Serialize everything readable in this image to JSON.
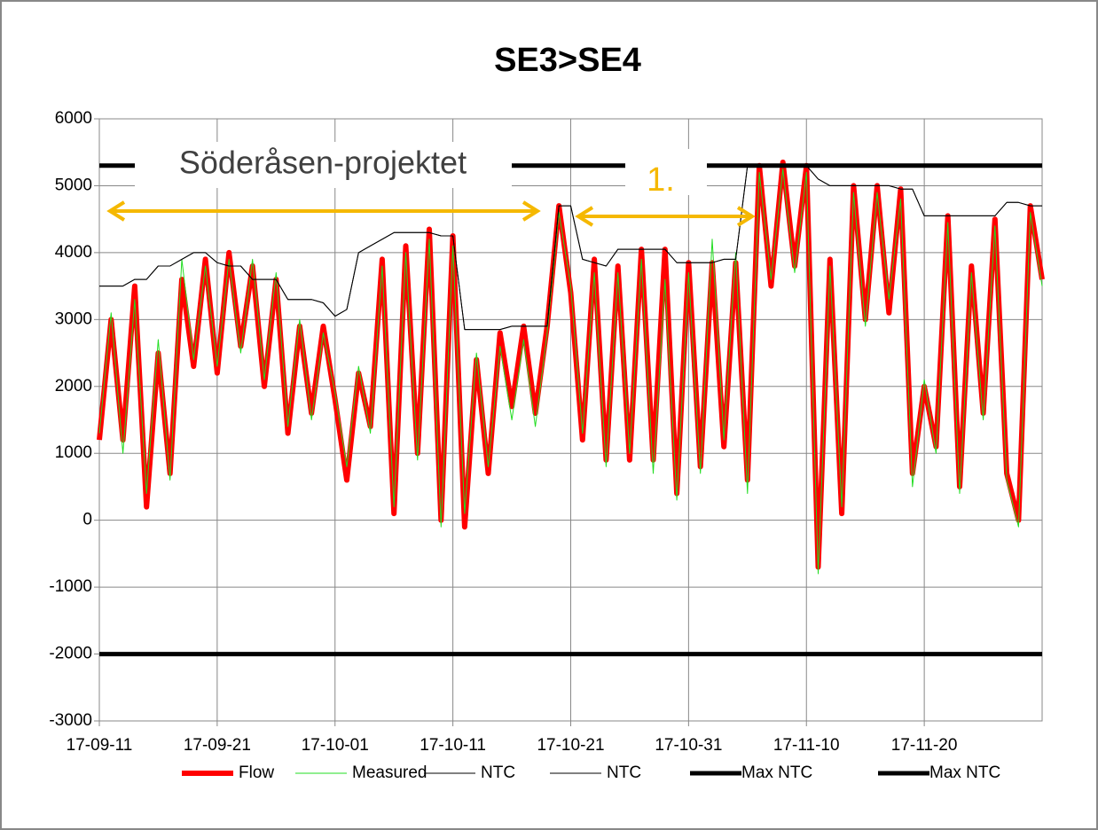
{
  "chart_data": {
    "type": "line",
    "title": "SE3>SE4",
    "x": [
      "17-09-11",
      "17-09-12",
      "17-09-13",
      "17-09-14",
      "17-09-15",
      "17-09-16",
      "17-09-17",
      "17-09-18",
      "17-09-19",
      "17-09-20",
      "17-09-21",
      "17-09-22",
      "17-09-23",
      "17-09-24",
      "17-09-25",
      "17-09-26",
      "17-09-27",
      "17-09-28",
      "17-09-29",
      "17-09-30",
      "17-10-01",
      "17-10-02",
      "17-10-03",
      "17-10-04",
      "17-10-05",
      "17-10-06",
      "17-10-07",
      "17-10-08",
      "17-10-09",
      "17-10-10",
      "17-10-11",
      "17-10-12",
      "17-10-13",
      "17-10-14",
      "17-10-15",
      "17-10-16",
      "17-10-17",
      "17-10-18",
      "17-10-19",
      "17-10-20",
      "17-10-21",
      "17-10-22",
      "17-10-23",
      "17-10-24",
      "17-10-25",
      "17-10-26",
      "17-10-27",
      "17-10-28",
      "17-10-29",
      "17-10-30",
      "17-10-31",
      "17-11-01",
      "17-11-02",
      "17-11-03",
      "17-11-04",
      "17-11-05",
      "17-11-06",
      "17-11-07",
      "17-11-08",
      "17-11-09",
      "17-11-10",
      "17-11-11",
      "17-11-12",
      "17-11-13",
      "17-11-14",
      "17-11-15",
      "17-11-16",
      "17-11-17",
      "17-11-18",
      "17-11-19",
      "17-11-20",
      "17-11-21",
      "17-11-22",
      "17-11-23",
      "17-11-24",
      "17-11-25",
      "17-11-26",
      "17-11-27",
      "17-11-28",
      "17-11-29",
      "17-11-30"
    ],
    "xticks": [
      "17-09-11",
      "17-09-21",
      "17-10-01",
      "17-10-11",
      "17-10-21",
      "17-10-31",
      "17-11-10",
      "17-11-20"
    ],
    "ylim": [
      -3000,
      6000
    ],
    "yticks": [
      -3000,
      -2000,
      -1000,
      0,
      1000,
      2000,
      3000,
      4000,
      5000,
      6000
    ],
    "grid": true,
    "series": [
      {
        "name": "Flow",
        "color": "#ff0000",
        "width": 6,
        "values": [
          1200,
          3000,
          1200,
          3500,
          200,
          2500,
          700,
          3600,
          2300,
          3900,
          2200,
          4000,
          2600,
          3800,
          2000,
          3600,
          1300,
          2900,
          1600,
          2900,
          1800,
          600,
          2200,
          1400,
          3900,
          100,
          4100,
          1000,
          4350,
          0,
          4250,
          -100,
          2400,
          700,
          2800,
          1700,
          2900,
          1600,
          2900,
          4700,
          3400,
          1200,
          3900,
          900,
          3800,
          900,
          4050,
          900,
          4050,
          400,
          3850,
          800,
          3850,
          1100,
          3850,
          600,
          5300,
          3500,
          5350,
          3800,
          5300,
          -700,
          3900,
          100,
          5000,
          3000,
          5000,
          3100,
          4950,
          700,
          2000,
          1100,
          4550,
          500,
          3800,
          1600,
          4500,
          700,
          0,
          4700,
          3600
        ]
      },
      {
        "name": "Measured",
        "color": "#22dd22",
        "width": 1,
        "values": [
          1300,
          3100,
          1000,
          3300,
          400,
          2700,
          600,
          3900,
          2400,
          3800,
          2300,
          3900,
          2500,
          3900,
          2100,
          3700,
          1400,
          3000,
          1500,
          2800,
          1900,
          800,
          2300,
          1300,
          3800,
          200,
          4000,
          900,
          4200,
          -100,
          4100,
          100,
          2500,
          800,
          2600,
          1500,
          2700,
          1400,
          2800,
          4600,
          3500,
          1300,
          3700,
          800,
          3700,
          1000,
          3900,
          700,
          3600,
          300,
          3700,
          700,
          4200,
          1200,
          4000,
          400,
          5200,
          3600,
          5250,
          3700,
          5200,
          -800,
          3800,
          200,
          4900,
          2900,
          4900,
          3300,
          4800,
          500,
          2100,
          1000,
          4450,
          400,
          3700,
          1500,
          4400,
          600,
          -100,
          4600,
          3500
        ]
      },
      {
        "name": "NTC",
        "color": "#000000",
        "width": 1,
        "values": [
          3500,
          3500,
          3500,
          3600,
          3600,
          3800,
          3800,
          3900,
          4000,
          4000,
          3850,
          3800,
          3800,
          3600,
          3600,
          3600,
          3300,
          3300,
          3300,
          3250,
          3050,
          3150,
          4000,
          4100,
          4200,
          4300,
          4300,
          4300,
          4300,
          4250,
          4250,
          2850,
          2850,
          2850,
          2850,
          2900,
          2900,
          2900,
          2900,
          4700,
          4700,
          3900,
          3850,
          3800,
          4050,
          4050,
          4050,
          4050,
          4050,
          3850,
          3850,
          3850,
          3850,
          3900,
          3900,
          5300,
          5300,
          5300,
          5300,
          5300,
          5300,
          5100,
          5000,
          5000,
          5000,
          5000,
          5000,
          5000,
          4950,
          4950,
          4550,
          4550,
          4550,
          4550,
          4550,
          4550,
          4550,
          4750,
          4750,
          4700,
          4700
        ]
      },
      {
        "name": "NTC",
        "color": "#000000",
        "width": 1,
        "values": [
          3500,
          3500,
          3500,
          3600,
          3600,
          3800,
          3800,
          3900,
          4000,
          4000,
          3850,
          3800,
          3800,
          3600,
          3600,
          3600,
          3300,
          3300,
          3300,
          3250,
          3050,
          3150,
          4000,
          4100,
          4200,
          4300,
          4300,
          4300,
          4300,
          4250,
          4250,
          2850,
          2850,
          2850,
          2850,
          2900,
          2900,
          2900,
          2900,
          4700,
          4700,
          3900,
          3850,
          3800,
          4050,
          4050,
          4050,
          4050,
          4050,
          3850,
          3850,
          3850,
          3850,
          3900,
          3900,
          5300,
          5300,
          5300,
          5300,
          5300,
          5300,
          5100,
          5000,
          5000,
          5000,
          5000,
          5000,
          5000,
          4950,
          4950,
          4550,
          4550,
          4550,
          4550,
          4550,
          4550,
          4550,
          4750,
          4750,
          4700,
          4700
        ]
      },
      {
        "name": "Max NTC",
        "color": "#000000",
        "width": 5,
        "values": [
          5300,
          5300,
          5300,
          5300,
          5300,
          5300,
          5300,
          5300,
          5300,
          5300,
          5300,
          5300,
          5300,
          5300,
          5300,
          5300,
          5300,
          5300,
          5300,
          5300,
          5300,
          5300,
          5300,
          5300,
          5300,
          5300,
          5300,
          5300,
          5300,
          5300,
          5300,
          5300,
          5300,
          5300,
          5300,
          5300,
          5300,
          5300,
          5300,
          5300,
          5300,
          5300,
          5300,
          5300,
          5300,
          5300,
          5300,
          5300,
          5300,
          5300,
          5300,
          5300,
          5300,
          5300,
          5300,
          5300,
          5300,
          5300,
          5300,
          5300,
          5300,
          5300,
          5300,
          5300,
          5300,
          5300,
          5300,
          5300,
          5300,
          5300,
          5300,
          5300,
          5300,
          5300,
          5300,
          5300,
          5300,
          5300,
          5300,
          5300,
          5300
        ]
      },
      {
        "name": "Max NTC",
        "color": "#000000",
        "width": 5,
        "values": [
          -2000,
          -2000,
          -2000,
          -2000,
          -2000,
          -2000,
          -2000,
          -2000,
          -2000,
          -2000,
          -2000,
          -2000,
          -2000,
          -2000,
          -2000,
          -2000,
          -2000,
          -2000,
          -2000,
          -2000,
          -2000,
          -2000,
          -2000,
          -2000,
          -2000,
          -2000,
          -2000,
          -2000,
          -2000,
          -2000,
          -2000,
          -2000,
          -2000,
          -2000,
          -2000,
          -2000,
          -2000,
          -2000,
          -2000,
          -2000,
          -2000,
          -2000,
          -2000,
          -2000,
          -2000,
          -2000,
          -2000,
          -2000,
          -2000,
          -2000,
          -2000,
          -2000,
          -2000,
          -2000,
          -2000,
          -2000,
          -2000,
          -2000,
          -2000,
          -2000,
          -2000,
          -2000,
          -2000,
          -2000,
          -2000,
          -2000,
          -2000,
          -2000,
          -2000,
          -2000,
          -2000,
          -2000,
          -2000,
          -2000,
          -2000,
          -2000,
          -2000,
          -2000,
          -2000,
          -2000,
          -2000
        ]
      }
    ],
    "annotations": [
      "Söderåsen-projektet",
      "1."
    ]
  }
}
